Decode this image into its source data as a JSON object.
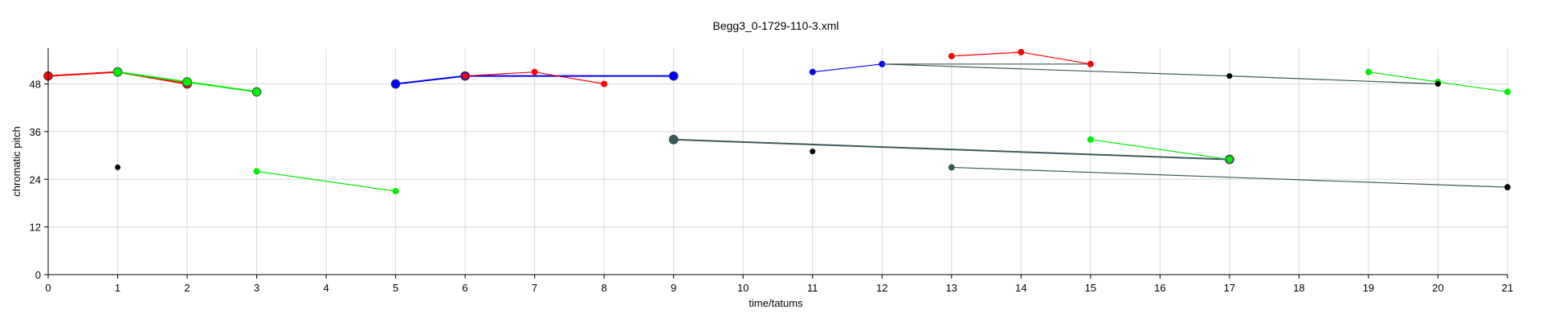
{
  "chart_data": {
    "type": "scatter",
    "title": "Begg3_0-1729-110-3.xml",
    "xlabel": "time/tatums",
    "ylabel": "chromatic pitch",
    "xlim": [
      0,
      21
    ],
    "ylim": [
      0,
      57
    ],
    "xticks": [
      0,
      1,
      2,
      3,
      4,
      5,
      6,
      7,
      8,
      9,
      10,
      11,
      12,
      13,
      14,
      15,
      16,
      17,
      18,
      19,
      20,
      21
    ],
    "yticks": [
      0,
      12,
      24,
      36,
      48
    ],
    "grid": true,
    "colors": {
      "red": "#ff0000",
      "green": "#00ee00",
      "blue": "#0000ff",
      "black": "#000000",
      "dark": "#3a5a5a"
    },
    "series": [
      {
        "color": "red",
        "points": [
          [
            0,
            50
          ],
          [
            1,
            51
          ],
          [
            2,
            48
          ]
        ],
        "size": "large",
        "line": true
      },
      {
        "color": "green",
        "points": [
          [
            1,
            51
          ],
          [
            2,
            48.5
          ],
          [
            3,
            46
          ]
        ],
        "size": "large",
        "line": true
      },
      {
        "color": "blue",
        "points": [
          [
            5,
            48
          ],
          [
            6,
            50
          ],
          [
            9,
            50
          ]
        ],
        "size": "large",
        "line": true
      },
      {
        "color": "red",
        "points": [
          [
            6,
            50
          ],
          [
            7,
            51
          ],
          [
            8,
            48
          ]
        ],
        "size": "medium",
        "line": true
      },
      {
        "color": "blue",
        "points": [
          [
            11,
            51
          ],
          [
            12,
            53
          ]
        ],
        "size": "medium",
        "line": true
      },
      {
        "color": "dark",
        "points": [
          [
            12,
            53
          ],
          [
            15,
            53
          ]
        ],
        "size": "none",
        "line": true
      },
      {
        "color": "dark",
        "points": [
          [
            12,
            53
          ],
          [
            17,
            50
          ],
          [
            20,
            48
          ]
        ],
        "size": "none",
        "line": true
      },
      {
        "color": "red",
        "points": [
          [
            13,
            55
          ],
          [
            14,
            56
          ],
          [
            15,
            53
          ]
        ],
        "size": "medium",
        "line": true
      },
      {
        "color": "green",
        "points": [
          [
            19,
            51
          ],
          [
            20,
            48.5
          ],
          [
            21,
            46
          ]
        ],
        "size": "medium",
        "line": true
      },
      {
        "color": "dark",
        "points": [
          [
            9,
            34
          ],
          [
            17,
            29
          ]
        ],
        "size": "large",
        "line": true
      },
      {
        "color": "green",
        "points": [
          [
            15,
            34
          ],
          [
            17,
            29
          ]
        ],
        "size": "medium",
        "line": true
      },
      {
        "color": "dark",
        "points": [
          [
            13,
            27
          ],
          [
            21,
            22
          ]
        ],
        "size": "medium",
        "line": true
      },
      {
        "color": "green",
        "points": [
          [
            3,
            26
          ],
          [
            5,
            21
          ]
        ],
        "size": "medium",
        "line": true
      },
      {
        "color": "black",
        "points": [
          [
            1,
            27
          ]
        ],
        "size": "small",
        "line": false
      },
      {
        "color": "black",
        "points": [
          [
            11,
            31
          ]
        ],
        "size": "small",
        "line": false
      },
      {
        "color": "black",
        "points": [
          [
            17,
            50
          ]
        ],
        "size": "small",
        "line": false
      },
      {
        "color": "black",
        "points": [
          [
            20,
            48
          ]
        ],
        "size": "small",
        "line": false
      },
      {
        "color": "black",
        "points": [
          [
            21,
            22
          ]
        ],
        "size": "small",
        "line": false
      }
    ]
  }
}
